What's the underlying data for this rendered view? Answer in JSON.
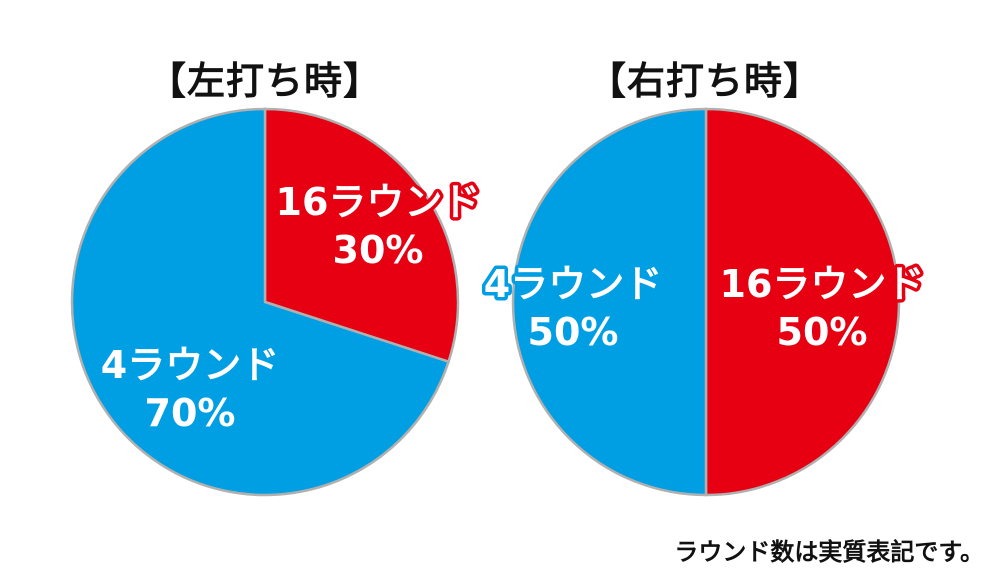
{
  "chart_data": [
    {
      "type": "pie",
      "title": "【左打ち時】",
      "categories": [
        "16ラウンド",
        "4ラウンド"
      ],
      "values": [
        30,
        70
      ],
      "percent_labels": [
        "30%",
        "70%"
      ],
      "colors": [
        "#e60012",
        "#009fe3"
      ]
    },
    {
      "type": "pie",
      "title": "【右打ち時】",
      "categories": [
        "16ラウンド",
        "4ラウンド"
      ],
      "values": [
        50,
        50
      ],
      "percent_labels": [
        "50%",
        "50%"
      ],
      "colors": [
        "#e60012",
        "#009fe3"
      ]
    }
  ],
  "footnote": "ラウンド数は実質表記です。"
}
